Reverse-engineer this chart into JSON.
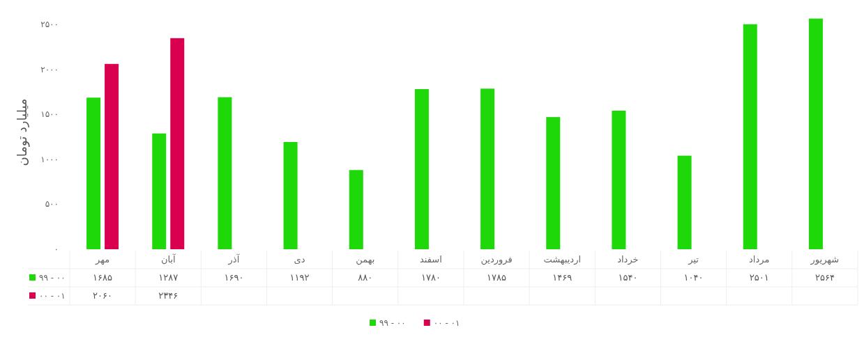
{
  "chart_data": {
    "type": "bar",
    "ylabel": "میلیارد تومان",
    "categories": [
      "مهر",
      "آبان",
      "آذر",
      "دی",
      "بهمن",
      "اسفند",
      "فروردین",
      "اردیبهشت",
      "خرداد",
      "تیر",
      "مرداد",
      "شهریور"
    ],
    "series": [
      {
        "name": "۹۹ - ۰۰",
        "color": "#1ed80a",
        "values": [
          1685,
          1287,
          1690,
          1192,
          880,
          1780,
          1785,
          1469,
          1540,
          1040,
          2501,
          2564
        ],
        "value_labels": [
          "۱۶۸۵",
          "۱۲۸۷",
          "۱۶۹۰",
          "۱۱۹۲",
          "۸۸۰",
          "۱۷۸۰",
          "۱۷۸۵",
          "۱۴۶۹",
          "۱۵۴۰",
          "۱۰۴۰",
          "۲۵۰۱",
          "۲۵۶۴"
        ]
      },
      {
        "name": "۰۰ - ۰۱",
        "color": "#da0050",
        "values": [
          2060,
          2346,
          null,
          null,
          null,
          null,
          null,
          null,
          null,
          null,
          null,
          null
        ],
        "value_labels": [
          "۲۰۶۰",
          "۲۳۴۶",
          null,
          null,
          null,
          null,
          null,
          null,
          null,
          null,
          null,
          null
        ]
      }
    ],
    "ylim": [
      0,
      2600
    ],
    "yticks": [
      {
        "value": 0,
        "label": "۰"
      },
      {
        "value": 500,
        "label": "۵۰۰"
      },
      {
        "value": 1000,
        "label": "۱۰۰۰"
      },
      {
        "value": 1500,
        "label": "۱۵۰۰"
      },
      {
        "value": 2000,
        "label": "۲۰۰۰"
      },
      {
        "value": 2500,
        "label": "۲۵۰۰"
      }
    ],
    "grid": false,
    "legend": "bottom"
  }
}
